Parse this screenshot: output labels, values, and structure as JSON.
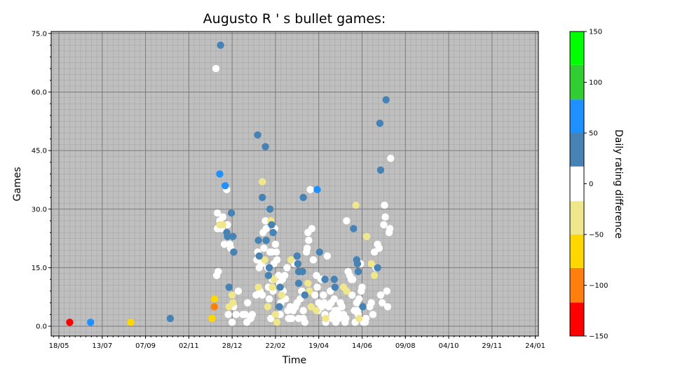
{
  "chart_data": {
    "type": "scatter",
    "title": "Augusto R ' s  bullet games:",
    "xlabel": "Time",
    "ylabel": "Games",
    "ylim": [
      -2.5,
      75.5
    ],
    "yticks": [
      0,
      15,
      30,
      45,
      60,
      75
    ],
    "ytick_labels": [
      "0.0",
      "15.0",
      "30.0",
      "45.0",
      "60.0",
      "75.0"
    ],
    "xlim": [
      -10,
      620
    ],
    "xticks": [
      0,
      56,
      112,
      168,
      224,
      280,
      336,
      392,
      448,
      504,
      560,
      616
    ],
    "xtick_labels": [
      "18/05",
      "13/07",
      "07/09",
      "02/11",
      "28/12",
      "22/02",
      "19/04",
      "14/06",
      "09/08",
      "04/10",
      "29/11",
      "24/01"
    ],
    "x_unit_note": "x values are days after 18/05",
    "grid": true,
    "colorbar": {
      "label": "Daily rating difference",
      "ticks": [
        -150,
        -100,
        -50,
        0,
        50,
        100,
        150
      ],
      "bins": [
        {
          "from": -150,
          "to": -117,
          "color": "#ff0000"
        },
        {
          "from": -117,
          "to": -83,
          "color": "#ff7f0e"
        },
        {
          "from": -83,
          "to": -50,
          "color": "#ffd700"
        },
        {
          "from": -50,
          "to": -17,
          "color": "#f0e68c"
        },
        {
          "from": -17,
          "to": 17,
          "color": "#ffffff"
        },
        {
          "from": 17,
          "to": 50,
          "color": "#4682b4"
        },
        {
          "from": 50,
          "to": 83,
          "color": "#1e90ff"
        },
        {
          "from": 83,
          "to": 117,
          "color": "#32cd32"
        },
        {
          "from": 117,
          "to": 150,
          "color": "#00ff00"
        }
      ]
    },
    "series": [
      {
        "color": "#ffffff",
        "points": [
          [
            203,
            66
          ],
          [
            204,
            13
          ],
          [
            205,
            29
          ],
          [
            205,
            25
          ],
          [
            206,
            14
          ],
          [
            208,
            27
          ],
          [
            210,
            25
          ],
          [
            212,
            28
          ],
          [
            214,
            21
          ],
          [
            217,
            35
          ],
          [
            218,
            26
          ],
          [
            221,
            21
          ],
          [
            222,
            20
          ],
          [
            226,
            5
          ],
          [
            229,
            3
          ],
          [
            232,
            9
          ],
          [
            238,
            3
          ],
          [
            241,
            3
          ],
          [
            244,
            6
          ],
          [
            243,
            1
          ],
          [
            248,
            2
          ],
          [
            250,
            3
          ],
          [
            255,
            8
          ],
          [
            256,
            17
          ],
          [
            257,
            19
          ],
          [
            259,
            15
          ],
          [
            260,
            9
          ],
          [
            262,
            16
          ],
          [
            263,
            8
          ],
          [
            264,
            24
          ],
          [
            265,
            20
          ],
          [
            267,
            27
          ],
          [
            268,
            25
          ],
          [
            270,
            15
          ],
          [
            271,
            10
          ],
          [
            272,
            7
          ],
          [
            273,
            19
          ],
          [
            275,
            19
          ],
          [
            276,
            12
          ],
          [
            277,
            9
          ],
          [
            278,
            16
          ],
          [
            279,
            25
          ],
          [
            280,
            21
          ],
          [
            281,
            19
          ],
          [
            282,
            17
          ],
          [
            284,
            13
          ],
          [
            285,
            11
          ],
          [
            287,
            6
          ],
          [
            289,
            12
          ],
          [
            290,
            9
          ],
          [
            292,
            13
          ],
          [
            293,
            7
          ],
          [
            295,
            15
          ],
          [
            296,
            4
          ],
          [
            297,
            2
          ],
          [
            299,
            5
          ],
          [
            301,
            2
          ],
          [
            303,
            4
          ],
          [
            304,
            5
          ],
          [
            305,
            16
          ],
          [
            308,
            6
          ],
          [
            310,
            2
          ],
          [
            312,
            7
          ],
          [
            314,
            9
          ],
          [
            316,
            4
          ],
          [
            318,
            1
          ],
          [
            320,
            19
          ],
          [
            321,
            20
          ],
          [
            322,
            24
          ],
          [
            323,
            22
          ],
          [
            325,
            35
          ],
          [
            327,
            25
          ],
          [
            329,
            17
          ],
          [
            331,
            8
          ],
          [
            333,
            13
          ],
          [
            334,
            10
          ],
          [
            336,
            6
          ],
          [
            337,
            19
          ],
          [
            339,
            12
          ],
          [
            340,
            5
          ],
          [
            342,
            8
          ],
          [
            344,
            3
          ],
          [
            345,
            1
          ],
          [
            347,
            18
          ],
          [
            349,
            5
          ],
          [
            351,
            9
          ],
          [
            352,
            6
          ],
          [
            354,
            3
          ],
          [
            356,
            7
          ],
          [
            358,
            1
          ],
          [
            360,
            4
          ],
          [
            362,
            2
          ],
          [
            364,
            6
          ],
          [
            366,
            5
          ],
          [
            368,
            3
          ],
          [
            370,
            1
          ],
          [
            372,
            27
          ],
          [
            374,
            14
          ],
          [
            376,
            13
          ],
          [
            378,
            12
          ],
          [
            380,
            12
          ],
          [
            382,
            4
          ],
          [
            383,
            1
          ],
          [
            385,
            6
          ],
          [
            387,
            3
          ],
          [
            388,
            7
          ],
          [
            390,
            16
          ],
          [
            392,
            10
          ],
          [
            394,
            1
          ],
          [
            396,
            1
          ],
          [
            398,
            23
          ],
          [
            402,
            5
          ],
          [
            404,
            6
          ],
          [
            406,
            3
          ],
          [
            408,
            19
          ],
          [
            410,
            15
          ],
          [
            412,
            21
          ],
          [
            414,
            20
          ],
          [
            416,
            8
          ],
          [
            418,
            6
          ],
          [
            420,
            26
          ],
          [
            421,
            31
          ],
          [
            422,
            28
          ],
          [
            424,
            9
          ],
          [
            425,
            5
          ],
          [
            427,
            24
          ],
          [
            428,
            25
          ],
          [
            429,
            43
          ],
          [
            219,
            3
          ],
          [
            224,
            1
          ],
          [
            274,
            2
          ],
          [
            286,
            3
          ],
          [
            306,
            5
          ],
          [
            316,
            2
          ],
          [
            335,
            4
          ],
          [
            343,
            6
          ],
          [
            353,
            2
          ],
          [
            357,
            4
          ],
          [
            363,
            3
          ],
          [
            371,
            2
          ],
          [
            379,
            8
          ],
          [
            386,
            4
          ],
          [
            391,
            9
          ],
          [
            397,
            2
          ]
        ]
      },
      {
        "color": "#f0e68c",
        "points": [
          [
            208,
            26
          ],
          [
            212,
            26
          ],
          [
            220,
            5
          ],
          [
            224,
            8
          ],
          [
            225,
            6
          ],
          [
            258,
            10
          ],
          [
            263,
            37
          ],
          [
            266,
            17
          ],
          [
            270,
            5
          ],
          [
            274,
            27
          ],
          [
            276,
            10
          ],
          [
            278,
            12
          ],
          [
            280,
            3
          ],
          [
            282,
            1
          ],
          [
            288,
            8
          ],
          [
            300,
            17
          ],
          [
            322,
            11
          ],
          [
            324,
            9
          ],
          [
            326,
            5
          ],
          [
            333,
            4
          ],
          [
            345,
            2
          ],
          [
            368,
            10
          ],
          [
            372,
            9
          ],
          [
            384,
            31
          ],
          [
            388,
            2
          ],
          [
            398,
            23
          ],
          [
            404,
            16
          ],
          [
            408,
            13
          ]
        ]
      },
      {
        "color": "#4682b4",
        "points": [
          [
            144,
            2
          ],
          [
            209,
            72
          ],
          [
            217,
            24
          ],
          [
            218,
            23
          ],
          [
            220,
            10
          ],
          [
            223,
            29
          ],
          [
            225,
            23
          ],
          [
            226,
            19
          ],
          [
            257,
            49
          ],
          [
            258,
            22
          ],
          [
            259,
            18
          ],
          [
            263,
            33
          ],
          [
            267,
            46
          ],
          [
            268,
            22
          ],
          [
            271,
            13
          ],
          [
            272,
            15
          ],
          [
            273,
            30
          ],
          [
            275,
            26
          ],
          [
            277,
            24
          ],
          [
            285,
            5
          ],
          [
            286,
            10
          ],
          [
            308,
            18
          ],
          [
            309,
            16
          ],
          [
            310,
            14
          ],
          [
            310,
            11
          ],
          [
            315,
            14
          ],
          [
            316,
            33
          ],
          [
            318,
            8
          ],
          [
            337,
            19
          ],
          [
            344,
            12
          ],
          [
            356,
            12
          ],
          [
            357,
            10
          ],
          [
            381,
            25
          ],
          [
            385,
            17
          ],
          [
            386,
            16
          ],
          [
            387,
            14
          ],
          [
            393,
            5
          ],
          [
            412,
            15
          ],
          [
            415,
            52
          ],
          [
            416,
            40
          ],
          [
            423,
            58
          ]
        ]
      },
      {
        "color": "#1e90ff",
        "points": [
          [
            41,
            1
          ],
          [
            208,
            39
          ],
          [
            215,
            36
          ],
          [
            334,
            35
          ]
        ]
      },
      {
        "color": "#ffd700",
        "points": [
          [
            93,
            1
          ],
          [
            198,
            2
          ],
          [
            201,
            7
          ]
        ]
      },
      {
        "color": "#ff7f0e",
        "points": [
          [
            201,
            5
          ]
        ]
      },
      {
        "color": "#ff0000",
        "points": [
          [
            14,
            1
          ]
        ]
      }
    ]
  }
}
